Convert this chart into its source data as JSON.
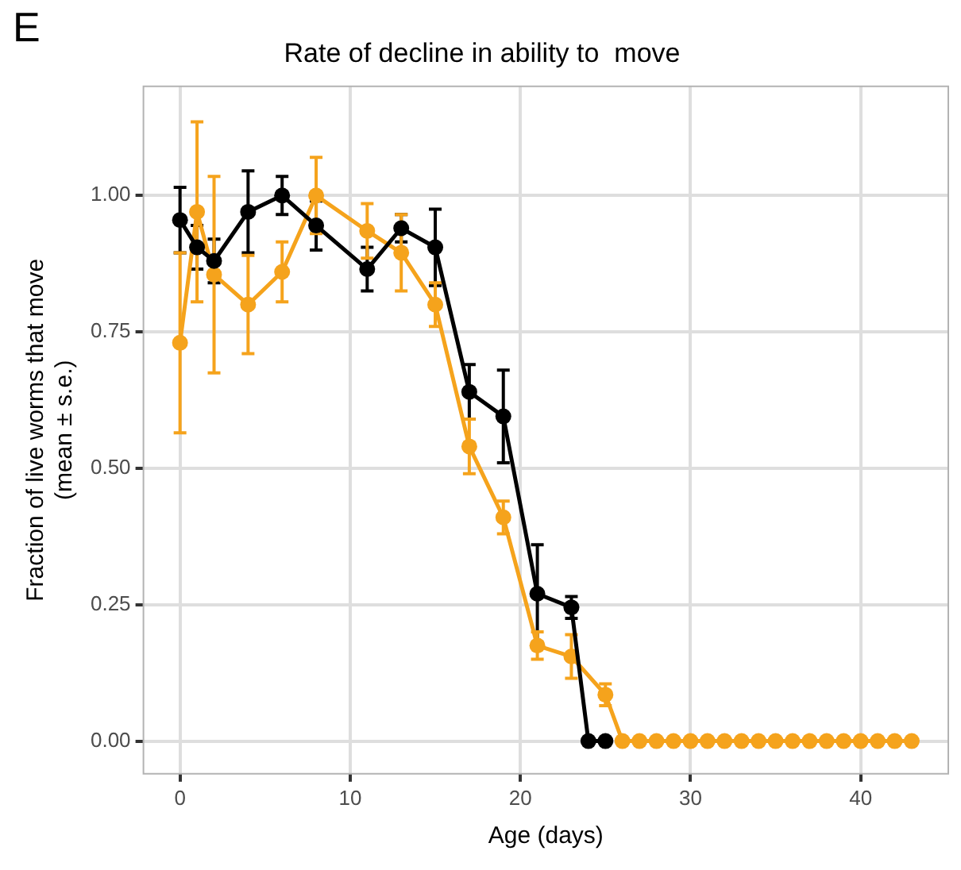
{
  "chart_data": {
    "type": "line",
    "title": "Rate of decline in ability to  move",
    "xlabel": "Age (days)",
    "ylabel": "Fraction of live worms that move\n(mean ± s.e.)",
    "annotations": [
      "E"
    ],
    "xlim": [
      -2.15,
      45.15
    ],
    "xticks": [
      0,
      10,
      20,
      30,
      40
    ],
    "ylim": [
      -0.06,
      1.2
    ],
    "yticks": [
      {
        "value": 0,
        "label": "0.00"
      },
      {
        "value": 0.25,
        "label": "0.25"
      },
      {
        "value": 0.5,
        "label": "0.50"
      },
      {
        "value": 0.75,
        "label": "0.75"
      },
      {
        "value": 1,
        "label": "1.00"
      }
    ],
    "grid": true,
    "legend": false,
    "marker": "circle",
    "line_style": "solid",
    "series": [
      {
        "color": "#000000",
        "x": [
          0,
          1,
          2,
          4,
          6,
          8,
          11,
          13,
          15,
          17,
          19,
          21,
          23,
          24,
          25
        ],
        "values": [
          0.955,
          0.905,
          0.88,
          0.97,
          1.0,
          0.945,
          0.865,
          0.94,
          0.905,
          0.64,
          0.595,
          0.27,
          0.245,
          0,
          0
        ],
        "errors": [
          0.06,
          0.04,
          0.04,
          0.075,
          0.035,
          0.045,
          0.04,
          0.025,
          0.07,
          0.05,
          0.085,
          0.09,
          0.02,
          null,
          null
        ]
      },
      {
        "color": "#f5a31c",
        "x": [
          0,
          1,
          2,
          4,
          6,
          8,
          11,
          13,
          15,
          17,
          19,
          21,
          23,
          25,
          26,
          27,
          28,
          29,
          30,
          31,
          32,
          33,
          34,
          35,
          36,
          37,
          38,
          39,
          40,
          41,
          42,
          43
        ],
        "values": [
          0.73,
          0.97,
          0.855,
          0.8,
          0.86,
          1.0,
          0.935,
          0.895,
          0.8,
          0.54,
          0.41,
          0.175,
          0.155,
          0.085,
          0,
          0,
          0,
          0,
          0,
          0,
          0,
          0,
          0,
          0,
          0,
          0,
          0,
          0,
          0,
          0,
          0,
          0
        ],
        "errors": [
          0.165,
          0.165,
          0.18,
          0.09,
          0.055,
          0.07,
          0.05,
          0.07,
          0.04,
          0.05,
          0.03,
          0.025,
          0.04,
          0.02,
          null,
          null,
          null,
          null,
          null,
          null,
          null,
          null,
          null,
          null,
          null,
          null,
          null,
          null,
          null,
          null,
          null,
          null
        ]
      }
    ]
  }
}
